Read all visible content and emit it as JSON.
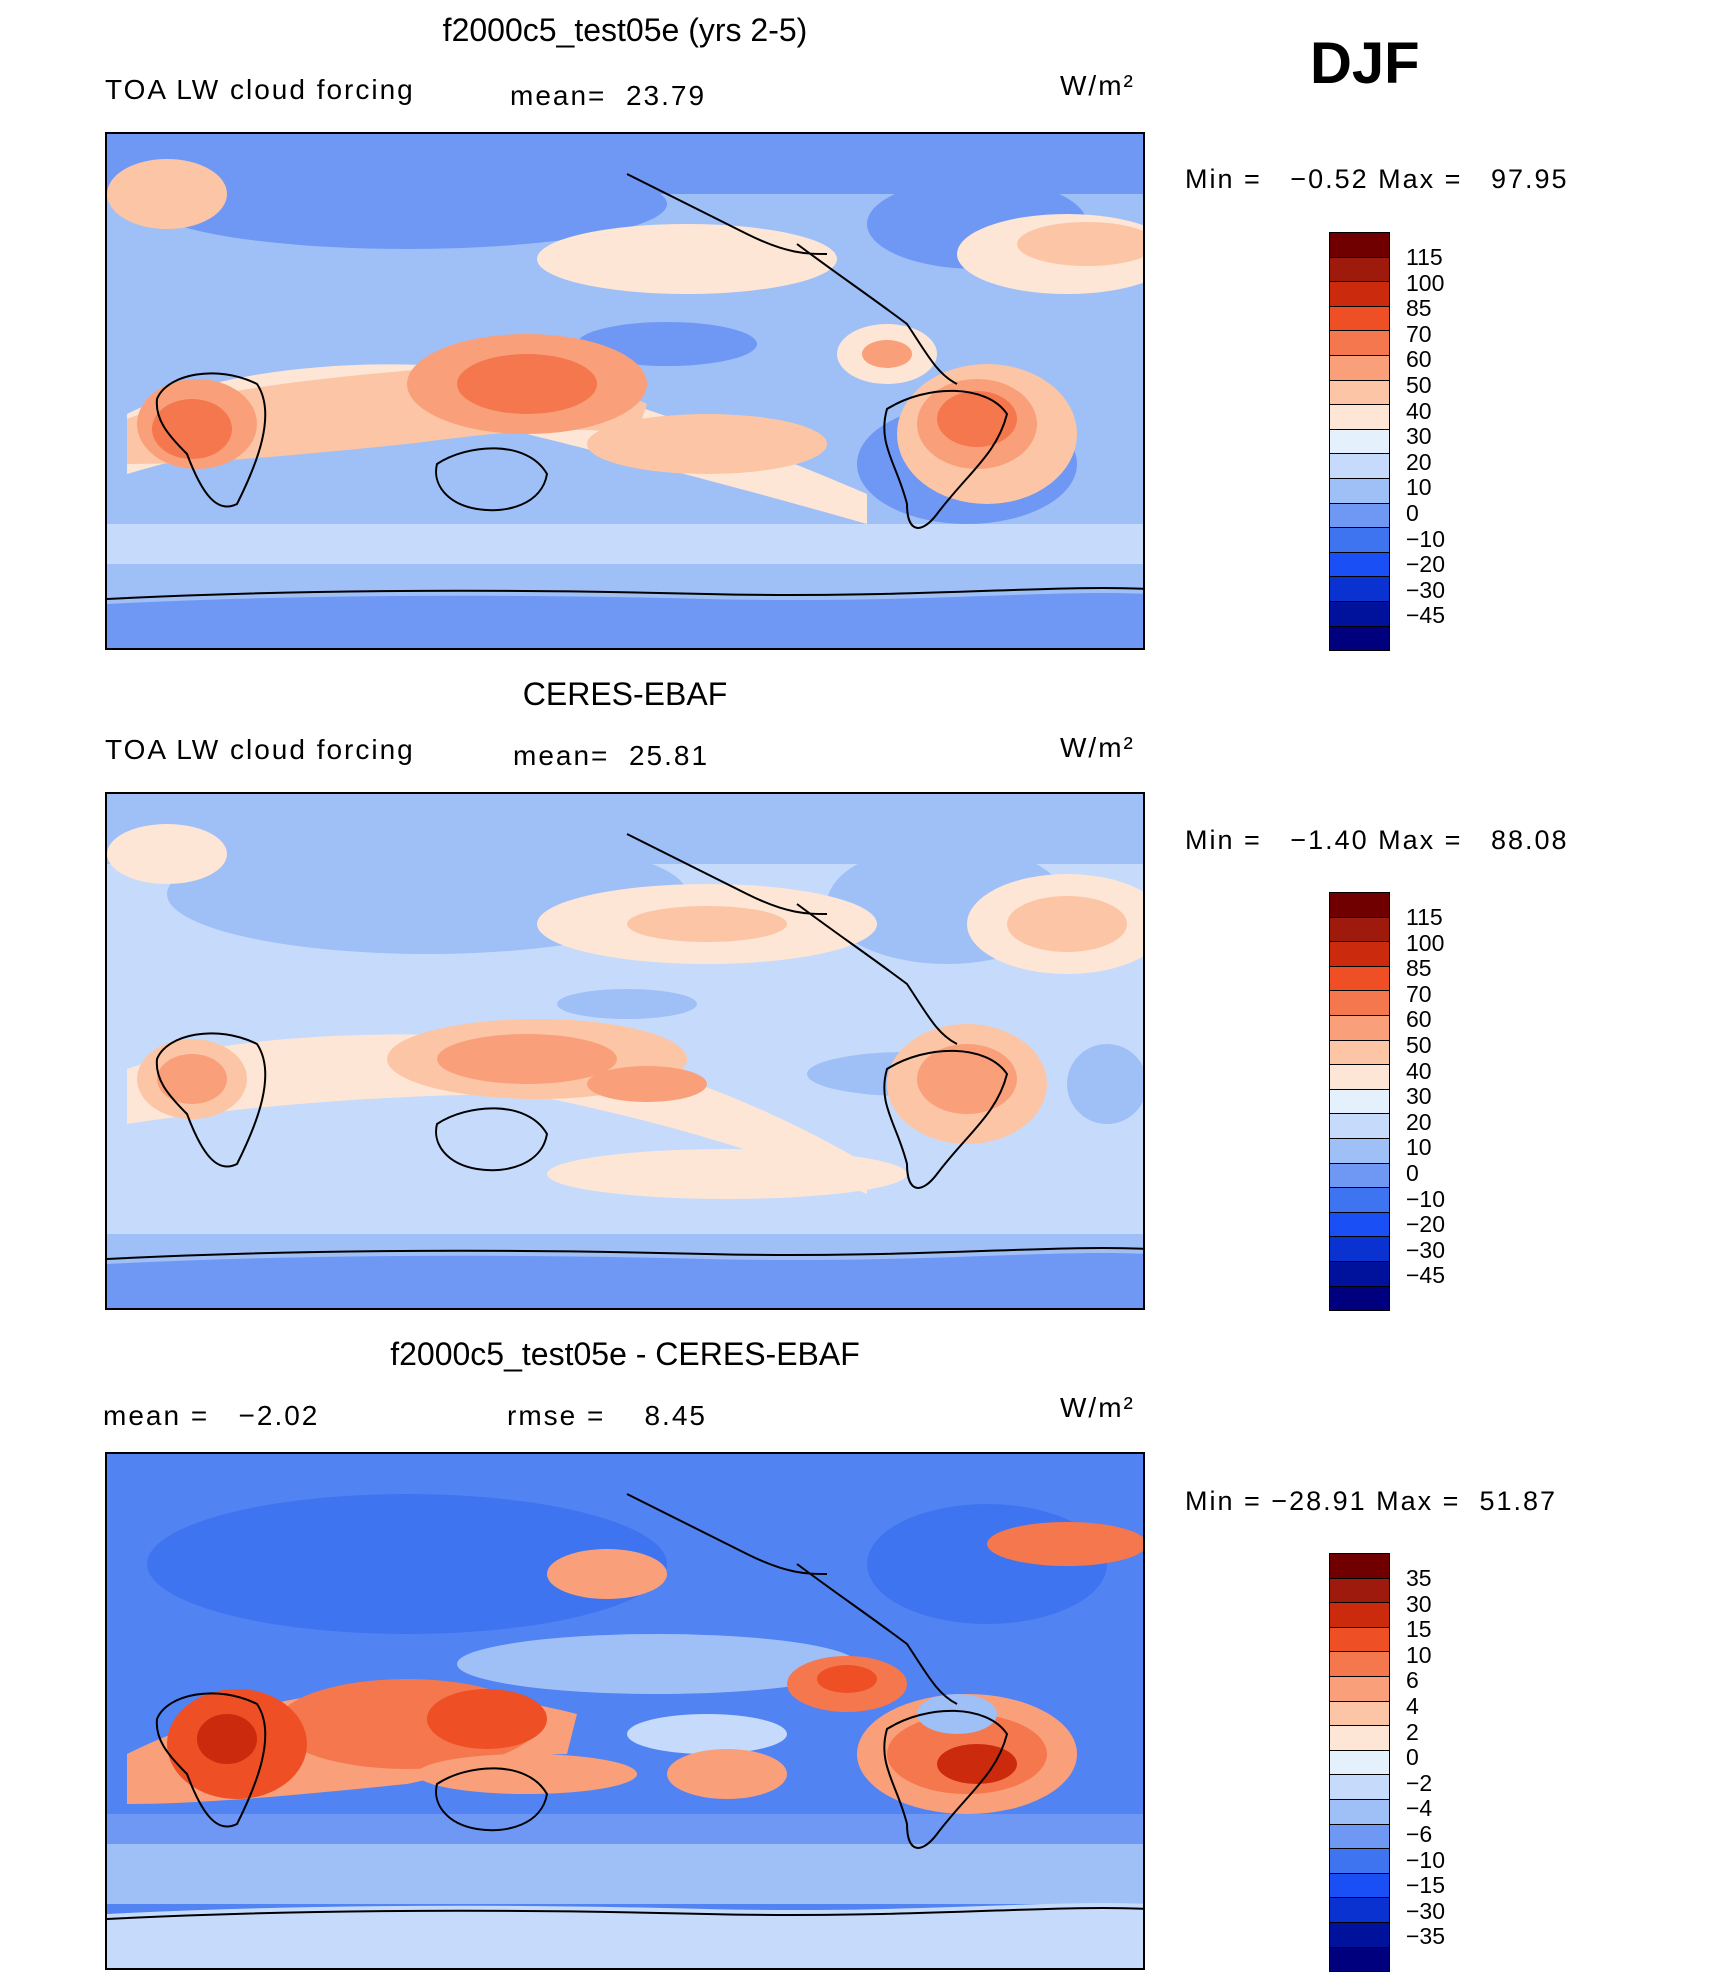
{
  "header": {
    "season": "DJF"
  },
  "palette_main": [
    "#00007f",
    "#00119c",
    "#0a32d0",
    "#1a4ff5",
    "#3f74f0",
    "#6f98f5",
    "#9fbff7",
    "#c6dbfb",
    "#e4f0fc",
    "#fde6d6",
    "#fcc6a6",
    "#f9a07b",
    "#f5774e",
    "#ee4f25",
    "#cb2a0c",
    "#9e1a0c",
    "#700000"
  ],
  "palette_diff": [
    "#00007f",
    "#00119c",
    "#0a32d0",
    "#1a4ff5",
    "#3f74f0",
    "#6f98f5",
    "#9fbff7",
    "#c6dbfb",
    "#e4f0fc",
    "#fde6d6",
    "#fcc6a6",
    "#f9a07b",
    "#f5774e",
    "#ee4f25",
    "#cb2a0c",
    "#9e1a0c",
    "#700000"
  ],
  "panels": [
    {
      "title": "f2000c5_test05e (yrs 2-5)",
      "left_label": "TOA LW cloud forcing",
      "mid_label": "mean=",
      "mid_value": "23.79",
      "units": "W/m²",
      "min_label": "Min  =",
      "min_value": "−0.52",
      "max_label": "Max  =",
      "max_value": "97.95",
      "levels": [
        "115",
        "100",
        "85",
        "70",
        "60",
        "50",
        "40",
        "30",
        "20",
        "10",
        "0",
        "−10",
        "−20",
        "−30",
        "−45"
      ]
    },
    {
      "title": "CERES-EBAF",
      "left_label": "TOA LW cloud forcing",
      "mid_label": "mean=",
      "mid_value": "25.81",
      "units": "W/m²",
      "min_label": "Min  =",
      "min_value": "−1.40",
      "max_label": "Max  =",
      "max_value": "88.08",
      "levels": [
        "115",
        "100",
        "85",
        "70",
        "60",
        "50",
        "40",
        "30",
        "20",
        "10",
        "0",
        "−10",
        "−20",
        "−30",
        "−45"
      ]
    },
    {
      "title": "f2000c5_test05e - CERES-EBAF",
      "left_label": "mean  =",
      "left_value": "−2.02",
      "mid_label": "rmse  =",
      "mid_value": "8.45",
      "units": "W/m²",
      "min_label": "Min  =",
      "min_value": "−28.91",
      "max_label": "Max  =",
      "max_value": "51.87",
      "levels": [
        "35",
        "30",
        "15",
        "10",
        "6",
        "4",
        "2",
        "0",
        "−2",
        "−4",
        "−6",
        "−10",
        "−15",
        "−30",
        "−35"
      ]
    }
  ]
}
